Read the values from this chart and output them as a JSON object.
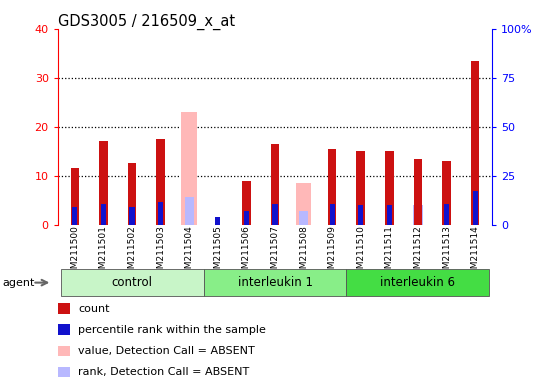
{
  "title": "GDS3005 / 216509_x_at",
  "samples": [
    "GSM211500",
    "GSM211501",
    "GSM211502",
    "GSM211503",
    "GSM211504",
    "GSM211505",
    "GSM211506",
    "GSM211507",
    "GSM211508",
    "GSM211509",
    "GSM211510",
    "GSM211511",
    "GSM211512",
    "GSM211513",
    "GSM211514"
  ],
  "groups": [
    {
      "label": "control",
      "color": "#c8f5c8",
      "start": 0,
      "end": 4
    },
    {
      "label": "interleukin 1",
      "color": "#88ee88",
      "start": 5,
      "end": 9
    },
    {
      "label": "interleukin 6",
      "color": "#44dd44",
      "start": 10,
      "end": 14
    }
  ],
  "count": [
    11.5,
    17.0,
    12.5,
    17.5,
    null,
    null,
    9.0,
    16.5,
    null,
    15.5,
    15.0,
    15.0,
    13.5,
    13.0,
    33.5
  ],
  "percentile_rank": [
    9.0,
    10.5,
    9.0,
    11.5,
    null,
    4.0,
    7.0,
    10.5,
    null,
    10.5,
    10.0,
    10.0,
    null,
    10.5,
    17.0
  ],
  "absent_value": [
    null,
    null,
    null,
    null,
    23.0,
    null,
    null,
    null,
    8.5,
    null,
    null,
    null,
    null,
    null,
    null
  ],
  "absent_rank": [
    null,
    null,
    null,
    null,
    14.0,
    null,
    null,
    null,
    7.0,
    null,
    null,
    null,
    10.0,
    null,
    null
  ],
  "ylim_left": [
    0,
    40
  ],
  "ylim_right": [
    0,
    100
  ],
  "yticks_left": [
    0,
    10,
    20,
    30,
    40
  ],
  "yticks_right": [
    0,
    25,
    50,
    75,
    100
  ],
  "count_color": "#cc1111",
  "percentile_color": "#1111cc",
  "absent_value_color": "#ffb8b8",
  "absent_rank_color": "#b8b8ff",
  "plot_bg": "#ffffff",
  "tick_bg": "#d8d8d8",
  "legend": [
    {
      "color": "#cc1111",
      "label": "count"
    },
    {
      "color": "#1111cc",
      "label": "percentile rank within the sample"
    },
    {
      "color": "#ffb8b8",
      "label": "value, Detection Call = ABSENT"
    },
    {
      "color": "#b8b8ff",
      "label": "rank, Detection Call = ABSENT"
    }
  ]
}
